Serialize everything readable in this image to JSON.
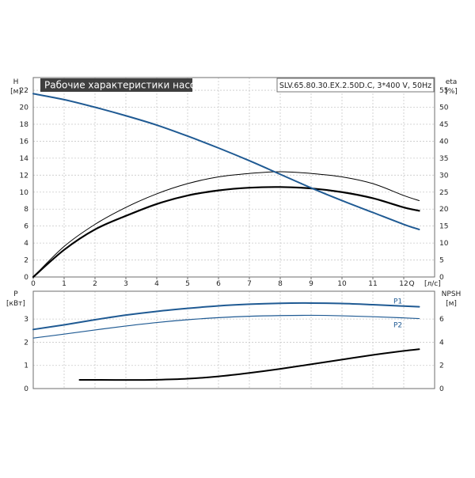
{
  "chart_data": [
    {
      "type": "line",
      "title": "Рабочие характеристики насоса",
      "subtitle": "SLV.65.80.30.EX.2.50D.C, 3*400 V, 50Hz",
      "xlabel": "Q",
      "xunit": "[л/с]",
      "ylabel": "H",
      "yunit": "[м]",
      "y2label": "eta",
      "y2unit": "[%]",
      "xlim": [
        0,
        13
      ],
      "ylim": [
        0,
        23.5
      ],
      "y2lim": [
        0,
        58.75
      ],
      "xticks": [
        "0",
        "1",
        "2",
        "3",
        "4",
        "5",
        "6",
        "7",
        "8",
        "9",
        "10",
        "11",
        "12"
      ],
      "yticks": [
        "0",
        "2",
        "4",
        "6",
        "8",
        "10",
        "12",
        "14",
        "16",
        "18",
        "20",
        "22"
      ],
      "y2ticks": [
        "0",
        "5",
        "10",
        "15",
        "20",
        "25",
        "30",
        "35",
        "40",
        "45",
        "50",
        "55"
      ],
      "grid": true,
      "colors": {
        "head": "#1f5a93",
        "eta": "#000000",
        "title_bg": "#3f3f3f"
      },
      "series": [
        {
          "axis": "left",
          "x": [
            0,
            1,
            2,
            3,
            4,
            5,
            6,
            7,
            8,
            9,
            10,
            11,
            12,
            12.5
          ],
          "values": [
            21.6,
            20.9,
            20.0,
            19.0,
            17.9,
            16.6,
            15.2,
            13.7,
            12.1,
            10.5,
            9.0,
            7.6,
            6.2,
            5.6
          ]
        },
        {
          "axis": "right",
          "x": [
            0,
            1,
            2,
            3,
            4,
            5,
            6,
            7,
            8,
            9,
            10,
            11,
            12,
            12.5
          ],
          "values": [
            0,
            8,
            14,
            18,
            21.5,
            24,
            25.5,
            26.3,
            26.5,
            26.1,
            25,
            23.2,
            20.5,
            19.5
          ]
        },
        {
          "axis": "right",
          "x": [
            0,
            1,
            2,
            3,
            4,
            5,
            6,
            7,
            8,
            9,
            10,
            11,
            12,
            12.5
          ],
          "values": [
            0,
            9,
            15.5,
            20.5,
            24.5,
            27.5,
            29.5,
            30.5,
            31,
            30.5,
            29.5,
            27.5,
            24,
            22.5
          ]
        }
      ]
    },
    {
      "type": "line",
      "ylabel": "P",
      "yunit": "[кВт]",
      "y2label": "NPSH",
      "y2unit": "[м]",
      "xlim": [
        0,
        13
      ],
      "ylim": [
        0,
        4.2
      ],
      "y2lim": [
        0,
        8.4
      ],
      "yticks": [
        "0",
        "1",
        "2",
        "3"
      ],
      "y2ticks": [
        "0",
        "2",
        "4",
        "6"
      ],
      "grid": true,
      "colors": {
        "p1": "#1f5a93",
        "p2": "#1f5a93",
        "npsh": "#000000"
      },
      "series": [
        {
          "name": "P1",
          "axis": "left",
          "x": [
            0,
            1,
            2,
            3,
            4,
            5,
            6,
            7,
            8,
            9,
            10,
            11,
            12,
            12.5
          ],
          "values": [
            2.55,
            2.75,
            2.97,
            3.17,
            3.33,
            3.46,
            3.57,
            3.64,
            3.68,
            3.69,
            3.67,
            3.62,
            3.56,
            3.53
          ]
        },
        {
          "name": "P2",
          "axis": "left",
          "x": [
            0,
            1,
            2,
            3,
            4,
            5,
            6,
            7,
            8,
            9,
            10,
            11,
            12,
            12.5
          ],
          "values": [
            2.18,
            2.35,
            2.53,
            2.7,
            2.85,
            2.97,
            3.06,
            3.12,
            3.15,
            3.16,
            3.14,
            3.1,
            3.05,
            3.02
          ]
        },
        {
          "axis": "right",
          "x": [
            1.5,
            2,
            3,
            4,
            5,
            6,
            7,
            8,
            9,
            10,
            11,
            12,
            12.5
          ],
          "values": [
            0.75,
            0.75,
            0.74,
            0.76,
            0.85,
            1.05,
            1.35,
            1.7,
            2.1,
            2.5,
            2.9,
            3.25,
            3.4
          ]
        }
      ]
    }
  ]
}
